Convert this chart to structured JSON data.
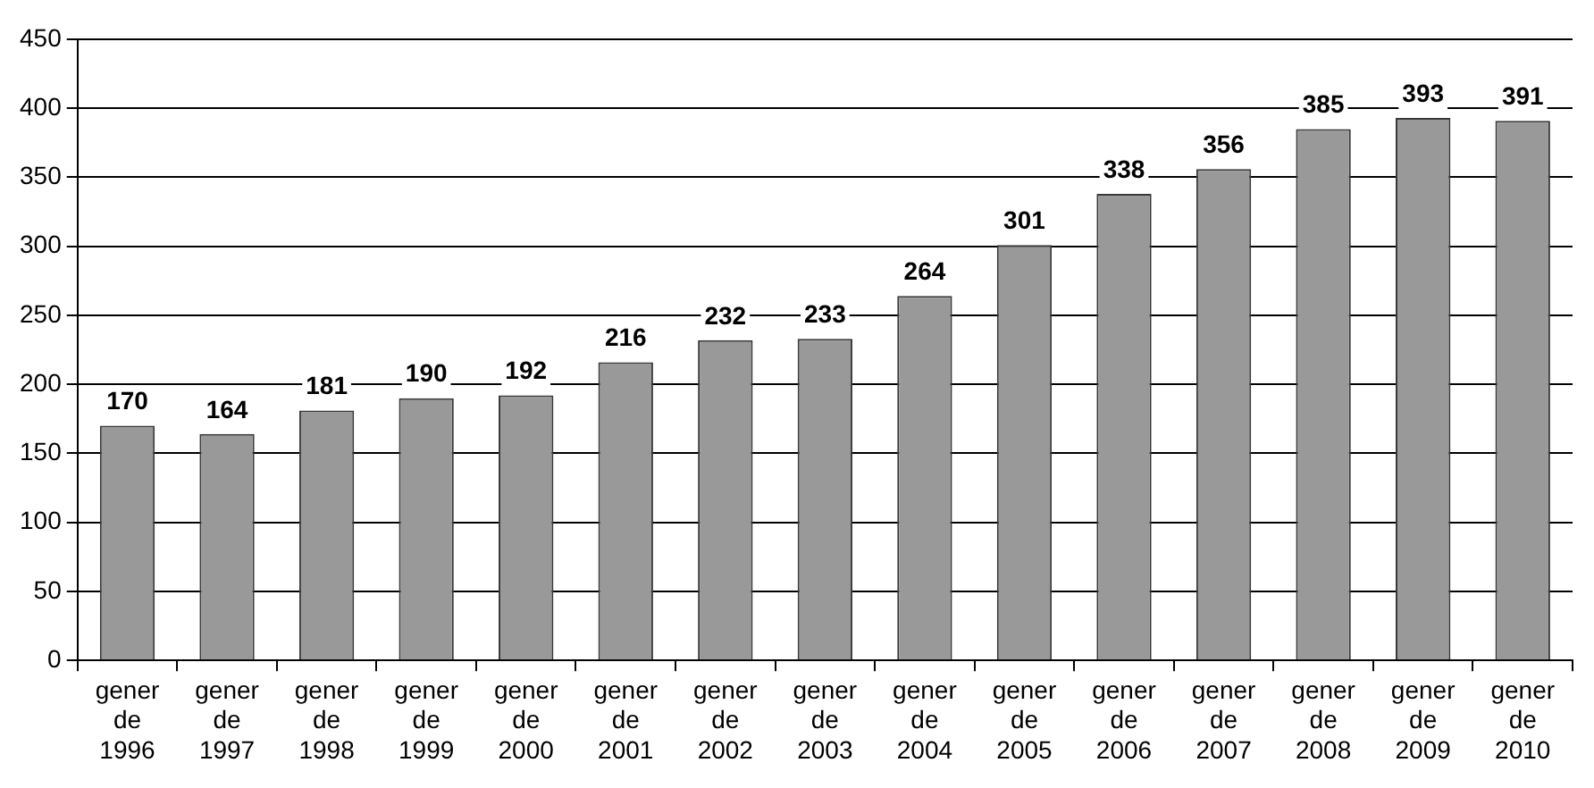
{
  "chart_data": {
    "type": "bar",
    "categories": [
      "gener de 1996",
      "gener de 1997",
      "gener de 1998",
      "gener de 1999",
      "gener de 2000",
      "gener de 2001",
      "gener de 2002",
      "gener de 2003",
      "gener de 2004",
      "gener de 2005",
      "gener de 2006",
      "gener de 2007",
      "gener de 2008",
      "gener de 2009",
      "gener de 2010"
    ],
    "values": [
      170,
      164,
      181,
      190,
      192,
      216,
      232,
      233,
      264,
      301,
      338,
      356,
      385,
      393,
      391
    ],
    "color": "#999999",
    "ylim": [
      0,
      450
    ],
    "yticks": [
      0,
      50,
      100,
      150,
      200,
      250,
      300,
      350,
      400,
      450
    ],
    "grid": "y",
    "data_labels": true,
    "legend": false
  }
}
